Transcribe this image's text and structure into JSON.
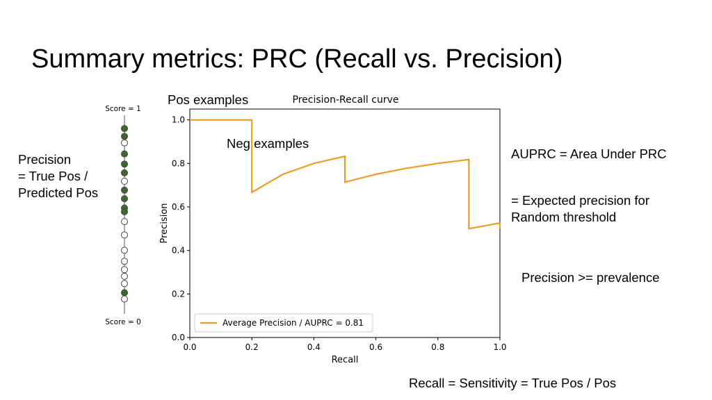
{
  "slide": {
    "title": "Summary metrics: PRC (Recall vs. Precision)",
    "precision_def": "Precision\n= True Pos /\nPredicted Pos",
    "pos_examples": "Pos examples",
    "neg_examples": "Neg examples",
    "auprc_def": "AUPRC = Area Under PRC",
    "expected_def": "= Expected precision for\nRandom threshold",
    "prevalence_note": "Precision >= prevalence",
    "recall_def": "Recall = Sensitivity = True Pos / Pos"
  },
  "score_strip": {
    "top_label": "Score = 1",
    "bottom_label": "Score = 0",
    "positive_color": "#3a6b2a",
    "negative_color": "#ffffff",
    "examples": [
      {
        "score": 0.966,
        "label": "pos"
      },
      {
        "score": 0.924,
        "label": "pos"
      },
      {
        "score": 0.889,
        "label": "neg"
      },
      {
        "score": 0.83,
        "label": "pos"
      },
      {
        "score": 0.775,
        "label": "pos"
      },
      {
        "score": 0.728,
        "label": "pos"
      },
      {
        "score": 0.683,
        "label": "neg"
      },
      {
        "score": 0.635,
        "label": "pos"
      },
      {
        "score": 0.589,
        "label": "pos"
      },
      {
        "score": 0.539,
        "label": "pos"
      },
      {
        "score": 0.519,
        "label": "pos"
      },
      {
        "score": 0.466,
        "label": "neg"
      },
      {
        "score": 0.394,
        "label": "neg"
      },
      {
        "score": 0.312,
        "label": "neg"
      },
      {
        "score": 0.253,
        "label": "neg"
      },
      {
        "score": 0.208,
        "label": "neg"
      },
      {
        "score": 0.172,
        "label": "neg"
      },
      {
        "score": 0.133,
        "label": "neg"
      },
      {
        "score": 0.084,
        "label": "pos"
      },
      {
        "score": 0.05,
        "label": "neg"
      }
    ]
  },
  "chart_data": {
    "type": "line",
    "title": "Precision-Recall curve",
    "xlabel": "Recall",
    "ylabel": "Precision",
    "xlim": [
      0,
      1
    ],
    "ylim": [
      0,
      1.05
    ],
    "xticks": [
      0.0,
      0.2,
      0.4,
      0.6,
      0.8,
      1.0
    ],
    "yticks": [
      0.0,
      0.2,
      0.4,
      0.6,
      0.8,
      1.0
    ],
    "grid": false,
    "legend": "lower-left",
    "color": "#ef9b20",
    "series": [
      {
        "name": "Average Precision / AUPRC = 0.81",
        "x": [
          0.0,
          0.2,
          0.2,
          0.3,
          0.4,
          0.5,
          0.5,
          0.6,
          0.7,
          0.8,
          0.9,
          0.9,
          1.0,
          1.0
        ],
        "y": [
          1.0,
          1.0,
          0.667,
          0.75,
          0.8,
          0.833,
          0.714,
          0.75,
          0.778,
          0.8,
          0.818,
          0.5,
          0.526,
          0.5
        ]
      }
    ]
  }
}
